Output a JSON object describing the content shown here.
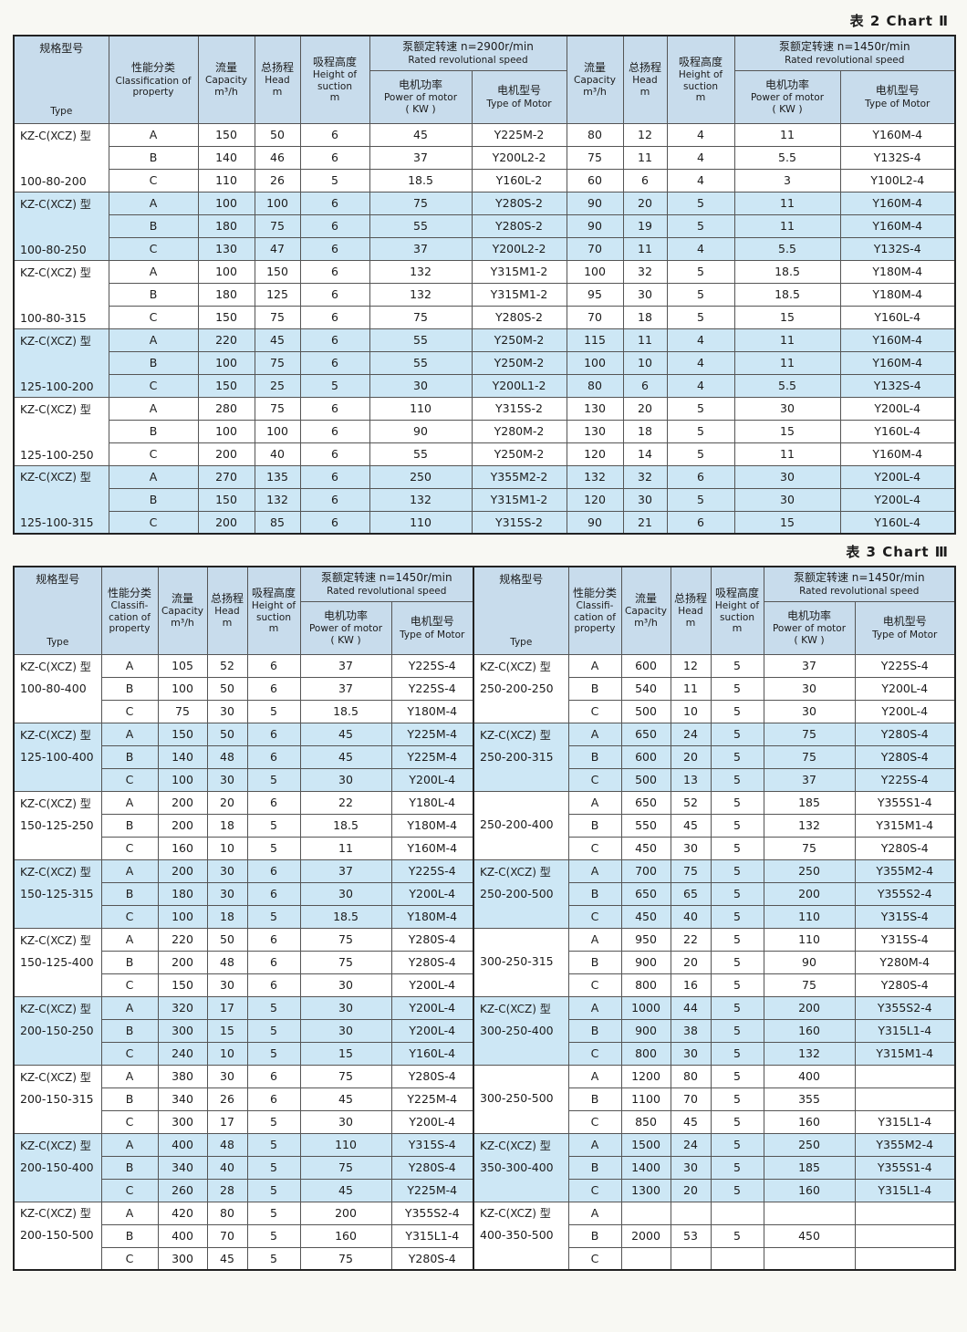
{
  "captions": {
    "table2": "表 2 Chart Ⅱ",
    "table3": "表 3 Chart Ⅲ"
  },
  "colors": {
    "header_bg": "#c8dcec",
    "stripe_bg": "#cde7f5",
    "grid": "#555555",
    "frame": "#222222",
    "page_bg": "#f8f8f3",
    "text": "#1c1c1c"
  },
  "headers": {
    "type_zh": "规格型号",
    "type_en": "Type",
    "class_zh": "性能分类",
    "class_en": "Classification of property",
    "class_en_t3": "Classifi-cation of property",
    "capacity_zh": "流量",
    "capacity_en": "Capacity",
    "capacity_unit": "m³/h",
    "head_zh": "总扬程",
    "head_en": "Head",
    "head_unit": "m",
    "suction_zh": "吸程高度",
    "suction_en": "Height of suction",
    "suction_unit": "m",
    "speed2900_zh": "泵额定转速 n=2900r/min",
    "speed1450_zh": "泵额定转速 n=1450r/min",
    "speed_en": "Rated revolutional speed",
    "power_zh": "电机功率",
    "power_en": "Power of motor",
    "power_unit": "( KW )",
    "motor_zh": "电机型号",
    "motor_en": "Type of Motor"
  },
  "table2": {
    "groups": [
      {
        "prefix": "KZ-C(XCZ) 型",
        "model": "100-80-200",
        "rows": [
          [
            "A",
            "150",
            "50",
            "6",
            "45",
            "Y225M-2",
            "80",
            "12",
            "4",
            "11",
            "Y160M-4"
          ],
          [
            "B",
            "140",
            "46",
            "6",
            "37",
            "Y200L2-2",
            "75",
            "11",
            "4",
            "5.5",
            "Y132S-4"
          ],
          [
            "C",
            "110",
            "26",
            "5",
            "18.5",
            "Y160L-2",
            "60",
            "6",
            "4",
            "3",
            "Y100L2-4"
          ]
        ]
      },
      {
        "prefix": "KZ-C(XCZ) 型",
        "model": "100-80-250",
        "rows": [
          [
            "A",
            "100",
            "100",
            "6",
            "75",
            "Y280S-2",
            "90",
            "20",
            "5",
            "11",
            "Y160M-4"
          ],
          [
            "B",
            "180",
            "75",
            "6",
            "55",
            "Y280S-2",
            "90",
            "19",
            "5",
            "11",
            "Y160M-4"
          ],
          [
            "C",
            "130",
            "47",
            "6",
            "37",
            "Y200L2-2",
            "70",
            "11",
            "4",
            "5.5",
            "Y132S-4"
          ]
        ]
      },
      {
        "prefix": "KZ-C(XCZ) 型",
        "model": "100-80-315",
        "rows": [
          [
            "A",
            "100",
            "150",
            "6",
            "132",
            "Y315M1-2",
            "100",
            "32",
            "5",
            "18.5",
            "Y180M-4"
          ],
          [
            "B",
            "180",
            "125",
            "6",
            "132",
            "Y315M1-2",
            "95",
            "30",
            "5",
            "18.5",
            "Y180M-4"
          ],
          [
            "C",
            "150",
            "75",
            "6",
            "75",
            "Y280S-2",
            "70",
            "18",
            "5",
            "15",
            "Y160L-4"
          ]
        ]
      },
      {
        "prefix": "KZ-C(XCZ) 型",
        "model": "125-100-200",
        "rows": [
          [
            "A",
            "220",
            "45",
            "6",
            "55",
            "Y250M-2",
            "115",
            "11",
            "4",
            "11",
            "Y160M-4"
          ],
          [
            "B",
            "100",
            "75",
            "6",
            "55",
            "Y250M-2",
            "100",
            "10",
            "4",
            "11",
            "Y160M-4"
          ],
          [
            "C",
            "150",
            "25",
            "5",
            "30",
            "Y200L1-2",
            "80",
            "6",
            "4",
            "5.5",
            "Y132S-4"
          ]
        ]
      },
      {
        "prefix": "KZ-C(XCZ) 型",
        "model": "125-100-250",
        "rows": [
          [
            "A",
            "280",
            "75",
            "6",
            "110",
            "Y315S-2",
            "130",
            "20",
            "5",
            "30",
            "Y200L-4"
          ],
          [
            "B",
            "100",
            "100",
            "6",
            "90",
            "Y280M-2",
            "130",
            "18",
            "5",
            "15",
            "Y160L-4"
          ],
          [
            "C",
            "200",
            "40",
            "6",
            "55",
            "Y250M-2",
            "120",
            "14",
            "5",
            "11",
            "Y160M-4"
          ]
        ]
      },
      {
        "prefix": "KZ-C(XCZ) 型",
        "model": "125-100-315",
        "rows": [
          [
            "A",
            "270",
            "135",
            "6",
            "250",
            "Y355M2-2",
            "132",
            "32",
            "6",
            "30",
            "Y200L-4"
          ],
          [
            "B",
            "150",
            "132",
            "6",
            "132",
            "Y315M1-2",
            "120",
            "30",
            "5",
            "30",
            "Y200L-4"
          ],
          [
            "C",
            "200",
            "85",
            "6",
            "110",
            "Y315S-2",
            "90",
            "21",
            "6",
            "15",
            "Y160L-4"
          ]
        ]
      }
    ]
  },
  "table3": {
    "left_groups": [
      {
        "prefix": "KZ-C(XCZ) 型",
        "model": "100-80-400",
        "rows": [
          [
            "A",
            "105",
            "52",
            "6",
            "37",
            "Y225S-4"
          ],
          [
            "B",
            "100",
            "50",
            "6",
            "37",
            "Y225S-4"
          ],
          [
            "C",
            "75",
            "30",
            "5",
            "18.5",
            "Y180M-4"
          ]
        ]
      },
      {
        "prefix": "KZ-C(XCZ) 型",
        "model": "125-100-400",
        "rows": [
          [
            "A",
            "150",
            "50",
            "6",
            "45",
            "Y225M-4"
          ],
          [
            "B",
            "140",
            "48",
            "6",
            "45",
            "Y225M-4"
          ],
          [
            "C",
            "100",
            "30",
            "5",
            "30",
            "Y200L-4"
          ]
        ]
      },
      {
        "prefix": "KZ-C(XCZ) 型",
        "model": "150-125-250",
        "rows": [
          [
            "A",
            "200",
            "20",
            "6",
            "22",
            "Y180L-4"
          ],
          [
            "B",
            "200",
            "18",
            "5",
            "18.5",
            "Y180M-4"
          ],
          [
            "C",
            "160",
            "10",
            "5",
            "11",
            "Y160M-4"
          ]
        ]
      },
      {
        "prefix": "KZ-C(XCZ) 型",
        "model": "150-125-315",
        "rows": [
          [
            "A",
            "200",
            "30",
            "6",
            "37",
            "Y225S-4"
          ],
          [
            "B",
            "180",
            "30",
            "6",
            "30",
            "Y200L-4"
          ],
          [
            "C",
            "100",
            "18",
            "5",
            "18.5",
            "Y180M-4"
          ]
        ]
      },
      {
        "prefix": "KZ-C(XCZ) 型",
        "model": "150-125-400",
        "rows": [
          [
            "A",
            "220",
            "50",
            "6",
            "75",
            "Y280S-4"
          ],
          [
            "B",
            "200",
            "48",
            "6",
            "75",
            "Y280S-4"
          ],
          [
            "C",
            "150",
            "30",
            "6",
            "30",
            "Y200L-4"
          ]
        ]
      },
      {
        "prefix": "KZ-C(XCZ) 型",
        "model": "200-150-250",
        "rows": [
          [
            "A",
            "320",
            "17",
            "5",
            "30",
            "Y200L-4"
          ],
          [
            "B",
            "300",
            "15",
            "5",
            "30",
            "Y200L-4"
          ],
          [
            "C",
            "240",
            "10",
            "5",
            "15",
            "Y160L-4"
          ]
        ]
      },
      {
        "prefix": "KZ-C(XCZ) 型",
        "model": "200-150-315",
        "rows": [
          [
            "A",
            "380",
            "30",
            "6",
            "75",
            "Y280S-4"
          ],
          [
            "B",
            "340",
            "26",
            "6",
            "45",
            "Y225M-4"
          ],
          [
            "C",
            "300",
            "17",
            "5",
            "30",
            "Y200L-4"
          ]
        ]
      },
      {
        "prefix": "KZ-C(XCZ) 型",
        "model": "200-150-400",
        "rows": [
          [
            "A",
            "400",
            "48",
            "5",
            "110",
            "Y315S-4"
          ],
          [
            "B",
            "340",
            "40",
            "5",
            "75",
            "Y280S-4"
          ],
          [
            "C",
            "260",
            "28",
            "5",
            "45",
            "Y225M-4"
          ]
        ]
      },
      {
        "prefix": "KZ-C(XCZ) 型",
        "model": "200-150-500",
        "rows": [
          [
            "A",
            "420",
            "80",
            "5",
            "200",
            "Y355S2-4"
          ],
          [
            "B",
            "400",
            "70",
            "5",
            "160",
            "Y315L1-4"
          ],
          [
            "C",
            "300",
            "45",
            "5",
            "75",
            "Y280S-4"
          ]
        ]
      }
    ],
    "right_groups": [
      {
        "prefix": "KZ-C(XCZ) 型",
        "model": "250-200-250",
        "rows": [
          [
            "A",
            "600",
            "12",
            "5",
            "37",
            "Y225S-4"
          ],
          [
            "B",
            "540",
            "11",
            "5",
            "30",
            "Y200L-4"
          ],
          [
            "C",
            "500",
            "10",
            "5",
            "30",
            "Y200L-4"
          ]
        ]
      },
      {
        "prefix": "KZ-C(XCZ) 型",
        "model": "250-200-315",
        "rows": [
          [
            "A",
            "650",
            "24",
            "5",
            "75",
            "Y280S-4"
          ],
          [
            "B",
            "600",
            "20",
            "5",
            "75",
            "Y280S-4"
          ],
          [
            "C",
            "500",
            "13",
            "5",
            "37",
            "Y225S-4"
          ]
        ]
      },
      {
        "prefix": "",
        "model": "250-200-400",
        "rows": [
          [
            "A",
            "650",
            "52",
            "5",
            "185",
            "Y355S1-4"
          ],
          [
            "B",
            "550",
            "45",
            "5",
            "132",
            "Y315M1-4"
          ],
          [
            "C",
            "450",
            "30",
            "5",
            "75",
            "Y280S-4"
          ]
        ]
      },
      {
        "prefix": "KZ-C(XCZ) 型",
        "model": "250-200-500",
        "rows": [
          [
            "A",
            "700",
            "75",
            "5",
            "250",
            "Y355M2-4"
          ],
          [
            "B",
            "650",
            "65",
            "5",
            "200",
            "Y355S2-4"
          ],
          [
            "C",
            "450",
            "40",
            "5",
            "110",
            "Y315S-4"
          ]
        ]
      },
      {
        "prefix": "",
        "model": "300-250-315",
        "rows": [
          [
            "A",
            "950",
            "22",
            "5",
            "110",
            "Y315S-4"
          ],
          [
            "B",
            "900",
            "20",
            "5",
            "90",
            "Y280M-4"
          ],
          [
            "C",
            "800",
            "16",
            "5",
            "75",
            "Y280S-4"
          ]
        ]
      },
      {
        "prefix": "KZ-C(XCZ) 型",
        "model": "300-250-400",
        "rows": [
          [
            "A",
            "1000",
            "44",
            "5",
            "200",
            "Y355S2-4"
          ],
          [
            "B",
            "900",
            "38",
            "5",
            "160",
            "Y315L1-4"
          ],
          [
            "C",
            "800",
            "30",
            "5",
            "132",
            "Y315M1-4"
          ]
        ]
      },
      {
        "prefix": "",
        "model": "300-250-500",
        "rows": [
          [
            "A",
            "1200",
            "80",
            "5",
            "400",
            ""
          ],
          [
            "B",
            "1100",
            "70",
            "5",
            "355",
            ""
          ],
          [
            "C",
            "850",
            "45",
            "5",
            "160",
            "Y315L1-4"
          ]
        ]
      },
      {
        "prefix": "KZ-C(XCZ) 型",
        "model": "350-300-400",
        "rows": [
          [
            "A",
            "1500",
            "24",
            "5",
            "250",
            "Y355M2-4"
          ],
          [
            "B",
            "1400",
            "30",
            "5",
            "185",
            "Y355S1-4"
          ],
          [
            "C",
            "1300",
            "20",
            "5",
            "160",
            "Y315L1-4"
          ]
        ]
      },
      {
        "prefix": "KZ-C(XCZ) 型",
        "model": "400-350-500",
        "rows": [
          [
            "A",
            "",
            "",
            "",
            "",
            ""
          ],
          [
            "B",
            "2000",
            "53",
            "5",
            "450",
            ""
          ],
          [
            "C",
            "",
            "",
            "",
            "",
            ""
          ]
        ]
      }
    ]
  }
}
